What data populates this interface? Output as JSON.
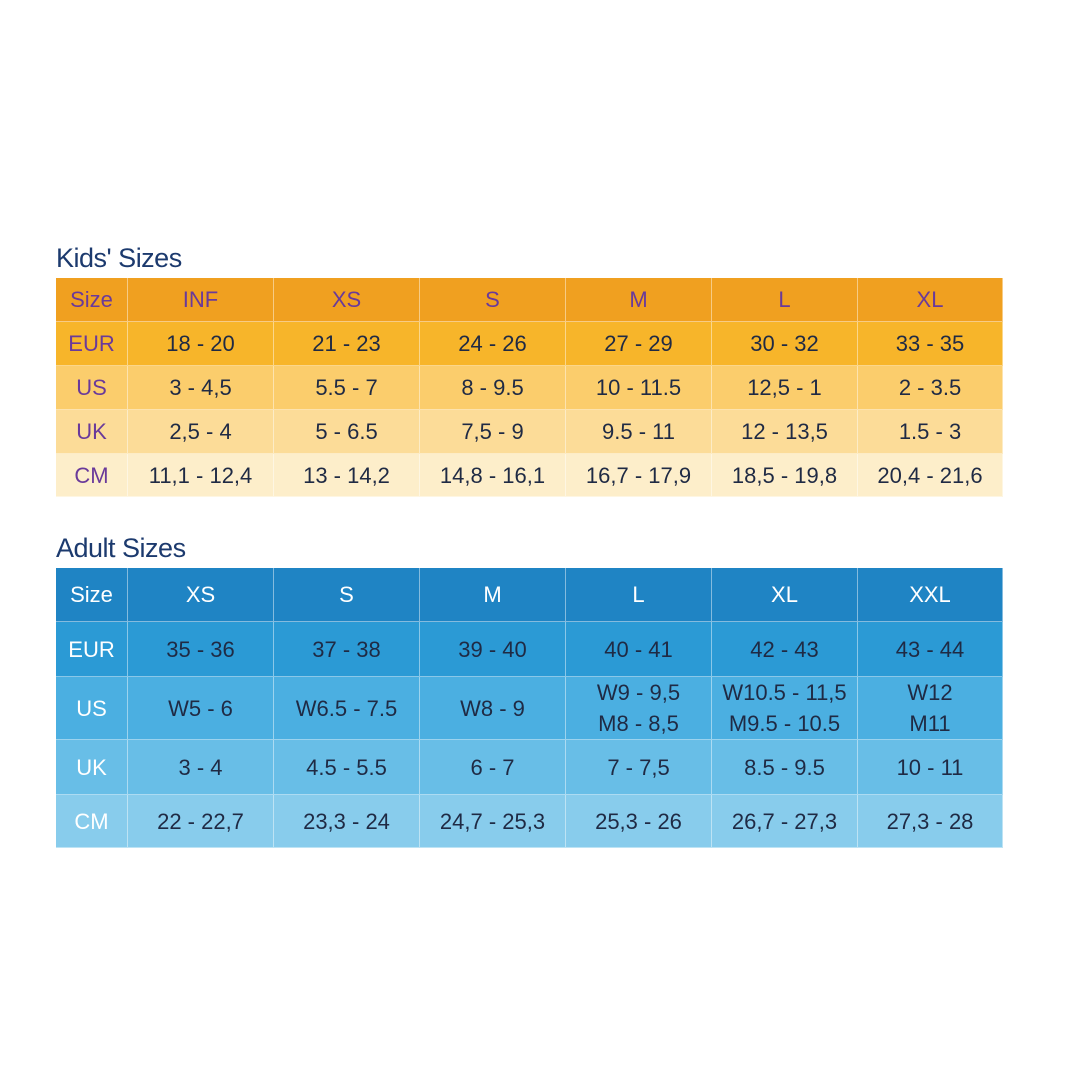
{
  "kids": {
    "title": "Kids' Sizes",
    "header": [
      "Size",
      "INF",
      "XS",
      "S",
      "M",
      "L",
      "XL"
    ],
    "rows": [
      [
        "EUR",
        "18 - 20",
        "21 - 23",
        "24 - 26",
        "27 - 29",
        "30 - 32",
        "33 - 35"
      ],
      [
        "US",
        "3 - 4,5",
        "5.5 - 7",
        "8 - 9.5",
        "10 - 11.5",
        "12,5 - 1",
        "2 - 3.5"
      ],
      [
        "UK",
        "2,5 - 4",
        "5 - 6.5",
        "7,5 - 9",
        "9.5 - 11",
        "12 - 13,5",
        "1.5 - 3"
      ],
      [
        "CM",
        "11,1 - 12,4",
        "13 - 14,2",
        "14,8 - 16,1",
        "16,7 - 17,9",
        "18,5 - 19,8",
        "20,4 - 21,6"
      ]
    ]
  },
  "adult": {
    "title": "Adult Sizes",
    "header": [
      "Size",
      "XS",
      "S",
      "M",
      "L",
      "XL",
      "XXL"
    ],
    "rows": [
      [
        "EUR",
        "35 - 36",
        "37 - 38",
        "39 - 40",
        "40 - 41",
        "42 - 43",
        "43 - 44"
      ],
      [
        "US",
        "W5 - 6",
        "W6.5 - 7.5",
        "W8 - 9",
        [
          "W9 - 9,5",
          "M8 - 8,5"
        ],
        [
          "W10.5 - 11,5",
          "M9.5 - 10.5"
        ],
        [
          "W12",
          "M11"
        ]
      ],
      [
        "UK",
        "3 - 4",
        "4.5 - 5.5",
        "6 - 7",
        "7 - 7,5",
        "8.5 - 9.5",
        "10 - 11"
      ],
      [
        "CM",
        "22 - 22,7",
        "23,3 - 24",
        "24,7 - 25,3",
        "25,3 - 26",
        "26,7 - 27,3",
        "27,3 - 28"
      ]
    ]
  }
}
